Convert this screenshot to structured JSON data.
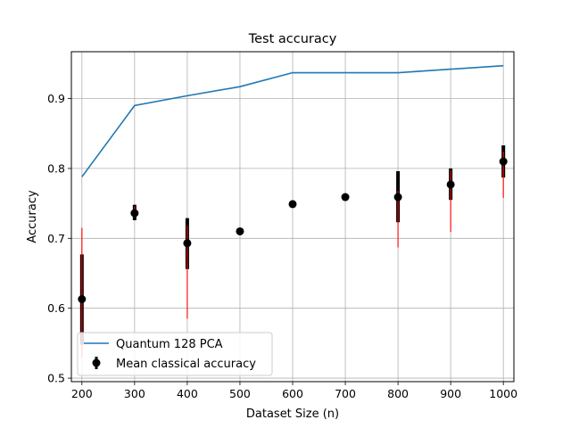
{
  "chart_data": {
    "type": "line",
    "title": "Test accuracy",
    "xlabel": "Dataset Size (n)",
    "ylabel": "Accuracy",
    "xlim": [
      180,
      1020
    ],
    "ylim": [
      0.495,
      0.967
    ],
    "x_ticks": [
      200,
      300,
      400,
      500,
      600,
      700,
      800,
      900,
      1000
    ],
    "y_ticks": [
      0.5,
      0.6,
      0.7,
      0.8,
      0.9
    ],
    "grid": true,
    "legend_position": "lower-left",
    "series": [
      {
        "name": "Quantum 128 PCA",
        "kind": "line",
        "color": "#1f77b4",
        "x": [
          200,
          300,
          400,
          500,
          600,
          700,
          800,
          900,
          1000
        ],
        "y": [
          0.788,
          0.89,
          0.904,
          0.917,
          0.937,
          0.937,
          0.937,
          0.942,
          0.947
        ]
      },
      {
        "name": "Mean classical accuracy",
        "kind": "errorbar",
        "color": "#000000",
        "inner_error_color": "#000000",
        "outer_error_color": "#ff0000",
        "x": [
          200,
          300,
          400,
          500,
          600,
          700,
          800,
          900,
          1000
        ],
        "y": [
          0.613,
          0.736,
          0.693,
          0.71,
          0.749,
          0.759,
          0.759,
          0.777,
          0.81
        ],
        "inner_low": [
          0.548,
          0.726,
          0.656,
          0.71,
          0.749,
          0.759,
          0.723,
          0.755,
          0.787
        ],
        "inner_high": [
          0.677,
          0.748,
          0.729,
          0.71,
          0.749,
          0.759,
          0.796,
          0.8,
          0.833
        ],
        "outer_low": [
          0.53,
          0.73,
          0.585,
          0.71,
          0.749,
          0.759,
          0.687,
          0.709,
          0.758
        ],
        "outer_high": [
          0.715,
          0.746,
          0.718,
          0.71,
          0.749,
          0.759,
          0.768,
          0.797,
          0.824
        ]
      }
    ]
  }
}
